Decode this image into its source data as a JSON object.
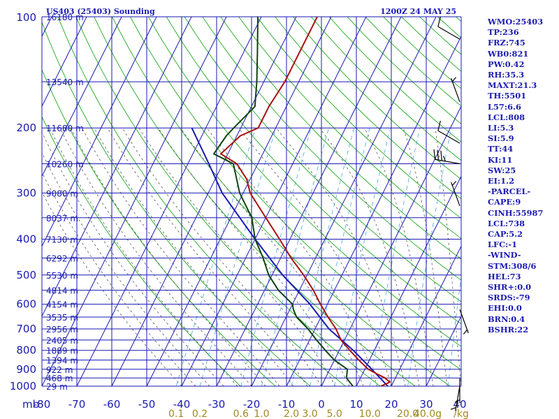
{
  "chart_data": {
    "type": "skew-t",
    "title_left": "US403 (25403) Sounding",
    "title_right": "1200Z 24 MAY 25",
    "pressure_unit": "mb",
    "pressure_range": [
      1000,
      100
    ],
    "temperature_range": [
      -80,
      40
    ],
    "pressure_levels": [
      100,
      200,
      300,
      400,
      500,
      600,
      700,
      800,
      900,
      1000
    ],
    "pressure_tick_labels": [
      "100",
      "200",
      "300",
      "400",
      "500",
      "600",
      "700",
      "800",
      "900",
      "1000"
    ],
    "temperature_ticks": [
      -80,
      -70,
      -60,
      -50,
      -40,
      -30,
      -20,
      -10,
      0,
      10,
      20,
      30,
      40
    ],
    "temperature_tick_labels": [
      "-80",
      "-70",
      "-60",
      "-50",
      "-40",
      "-30",
      "-20",
      "-10",
      "0",
      "10",
      "20",
      "30",
      "40"
    ],
    "height_labels": [
      {
        "p": 100,
        "label": "16180 m"
      },
      {
        "p": 150,
        "label": "13540 m"
      },
      {
        "p": 200,
        "label": "11680 m"
      },
      {
        "p": 250,
        "label": "10260 m"
      },
      {
        "p": 300,
        "label": "9080 m"
      },
      {
        "p": 350,
        "label": "8037 m"
      },
      {
        "p": 400,
        "label": "7130 m"
      },
      {
        "p": 450,
        "label": "6292 m"
      },
      {
        "p": 500,
        "label": "5530 m"
      },
      {
        "p": 550,
        "label": "4814 m"
      },
      {
        "p": 600,
        "label": "4154 m"
      },
      {
        "p": 650,
        "label": "3535 m"
      },
      {
        "p": 700,
        "label": "2956 m"
      },
      {
        "p": 750,
        "label": "2405 m"
      },
      {
        "p": 800,
        "label": "1889 m"
      },
      {
        "p": 850,
        "label": "1394 m"
      },
      {
        "p": 900,
        "label": "922 m"
      },
      {
        "p": 950,
        "label": "468 m"
      },
      {
        "p": 1000,
        "label": "29 m"
      }
    ],
    "mixing_ratio_labels": [
      "0.1",
      "0.2",
      "0.6",
      "1.0",
      "2.0",
      "3.0",
      "5.0",
      "10.0",
      "20.0",
      "40.0"
    ],
    "mixing_ratio_unit": "g/kg",
    "temperature_profile": [
      {
        "p": 1000,
        "t": 17
      },
      {
        "p": 975,
        "t": 19
      },
      {
        "p": 950,
        "t": 17
      },
      {
        "p": 925,
        "t": 14
      },
      {
        "p": 900,
        "t": 11
      },
      {
        "p": 850,
        "t": 7
      },
      {
        "p": 800,
        "t": 3
      },
      {
        "p": 750,
        "t": -1
      },
      {
        "p": 700,
        "t": -4
      },
      {
        "p": 650,
        "t": -8
      },
      {
        "p": 600,
        "t": -12
      },
      {
        "p": 550,
        "t": -16
      },
      {
        "p": 500,
        "t": -21
      },
      {
        "p": 450,
        "t": -27
      },
      {
        "p": 400,
        "t": -33
      },
      {
        "p": 350,
        "t": -40
      },
      {
        "p": 300,
        "t": -48
      },
      {
        "p": 275,
        "t": -51
      },
      {
        "p": 250,
        "t": -56
      },
      {
        "p": 235,
        "t": -62
      },
      {
        "p": 210,
        "t": -59
      },
      {
        "p": 200,
        "t": -55
      },
      {
        "p": 175,
        "t": -55
      },
      {
        "p": 150,
        "t": -54
      },
      {
        "p": 125,
        "t": -54
      },
      {
        "p": 100,
        "t": -54
      }
    ],
    "dewpoint_profile": [
      {
        "p": 1000,
        "t": 9
      },
      {
        "p": 950,
        "t": 6
      },
      {
        "p": 900,
        "t": 5
      },
      {
        "p": 850,
        "t": 0
      },
      {
        "p": 800,
        "t": -4
      },
      {
        "p": 750,
        "t": -8
      },
      {
        "p": 700,
        "t": -12
      },
      {
        "p": 650,
        "t": -17
      },
      {
        "p": 620,
        "t": -19
      },
      {
        "p": 600,
        "t": -20
      },
      {
        "p": 550,
        "t": -26
      },
      {
        "p": 500,
        "t": -31
      },
      {
        "p": 450,
        "t": -35
      },
      {
        "p": 400,
        "t": -40
      },
      {
        "p": 350,
        "t": -44
      },
      {
        "p": 300,
        "t": -51
      },
      {
        "p": 250,
        "t": -57
      },
      {
        "p": 235,
        "t": -64
      },
      {
        "p": 210,
        "t": -63
      },
      {
        "p": 200,
        "t": -62
      },
      {
        "p": 175,
        "t": -59
      },
      {
        "p": 150,
        "t": -62
      },
      {
        "p": 125,
        "t": -66
      },
      {
        "p": 100,
        "t": -71
      }
    ],
    "parcel_profile": [
      {
        "p": 1000,
        "t": 19
      },
      {
        "p": 900,
        "t": 12
      },
      {
        "p": 800,
        "t": 4
      },
      {
        "p": 700,
        "t": -6
      },
      {
        "p": 600,
        "t": -15
      },
      {
        "p": 500,
        "t": -27
      },
      {
        "p": 400,
        "t": -40
      },
      {
        "p": 300,
        "t": -56
      },
      {
        "p": 250,
        "t": -64
      },
      {
        "p": 200,
        "t": -74
      }
    ],
    "wind_barbs": [
      {
        "p": 115,
        "dir": 300,
        "kt": 10
      },
      {
        "p": 170,
        "dir": 340,
        "kt": 5
      },
      {
        "p": 220,
        "dir": 300,
        "kt": 10
      },
      {
        "p": 250,
        "dir": 280,
        "kt": 35
      },
      {
        "p": 325,
        "dir": 340,
        "kt": 5
      },
      {
        "p": 620,
        "dir": 160,
        "kt": 5
      },
      {
        "p": 950,
        "dir": 180,
        "kt": 5
      },
      {
        "p": 1000,
        "dir": 190,
        "kt": 5
      }
    ]
  },
  "indices": [
    "WMO:25403",
    "TP:236",
    "FRZ:745",
    "WB0:821",
    "PW:0.42",
    "RH:35.3",
    "MAXT:21.3",
    "TH:5501",
    "L57:6.6",
    "LCL:808",
    "LI:5.3",
    "SI:5.9",
    "TT:44",
    "KI:11",
    "SW:25",
    "EI:1.2",
    "-PARCEL-",
    "CAPE:9",
    "CINH:55987",
    "LCL:738",
    "CAP:5.2",
    "LFC:-1",
    "-WIND-",
    "STM:308/6",
    "HEL:73",
    "SHR+:0.0",
    "SRDS:-79",
    "EHI:0.0",
    "BRN:0.4",
    "BSHR:22"
  ],
  "colors": {
    "grid": "#1a1ab0",
    "dry_adiabat": "#22aa22",
    "moist_adiabat": "#555555",
    "mixing_ratio": "#44aadd",
    "temperature": "#aa1111",
    "dewpoint": "#114411",
    "parcel": "#1a1ab0",
    "mixing_label": "#a08a20",
    "barb": "#000000"
  }
}
